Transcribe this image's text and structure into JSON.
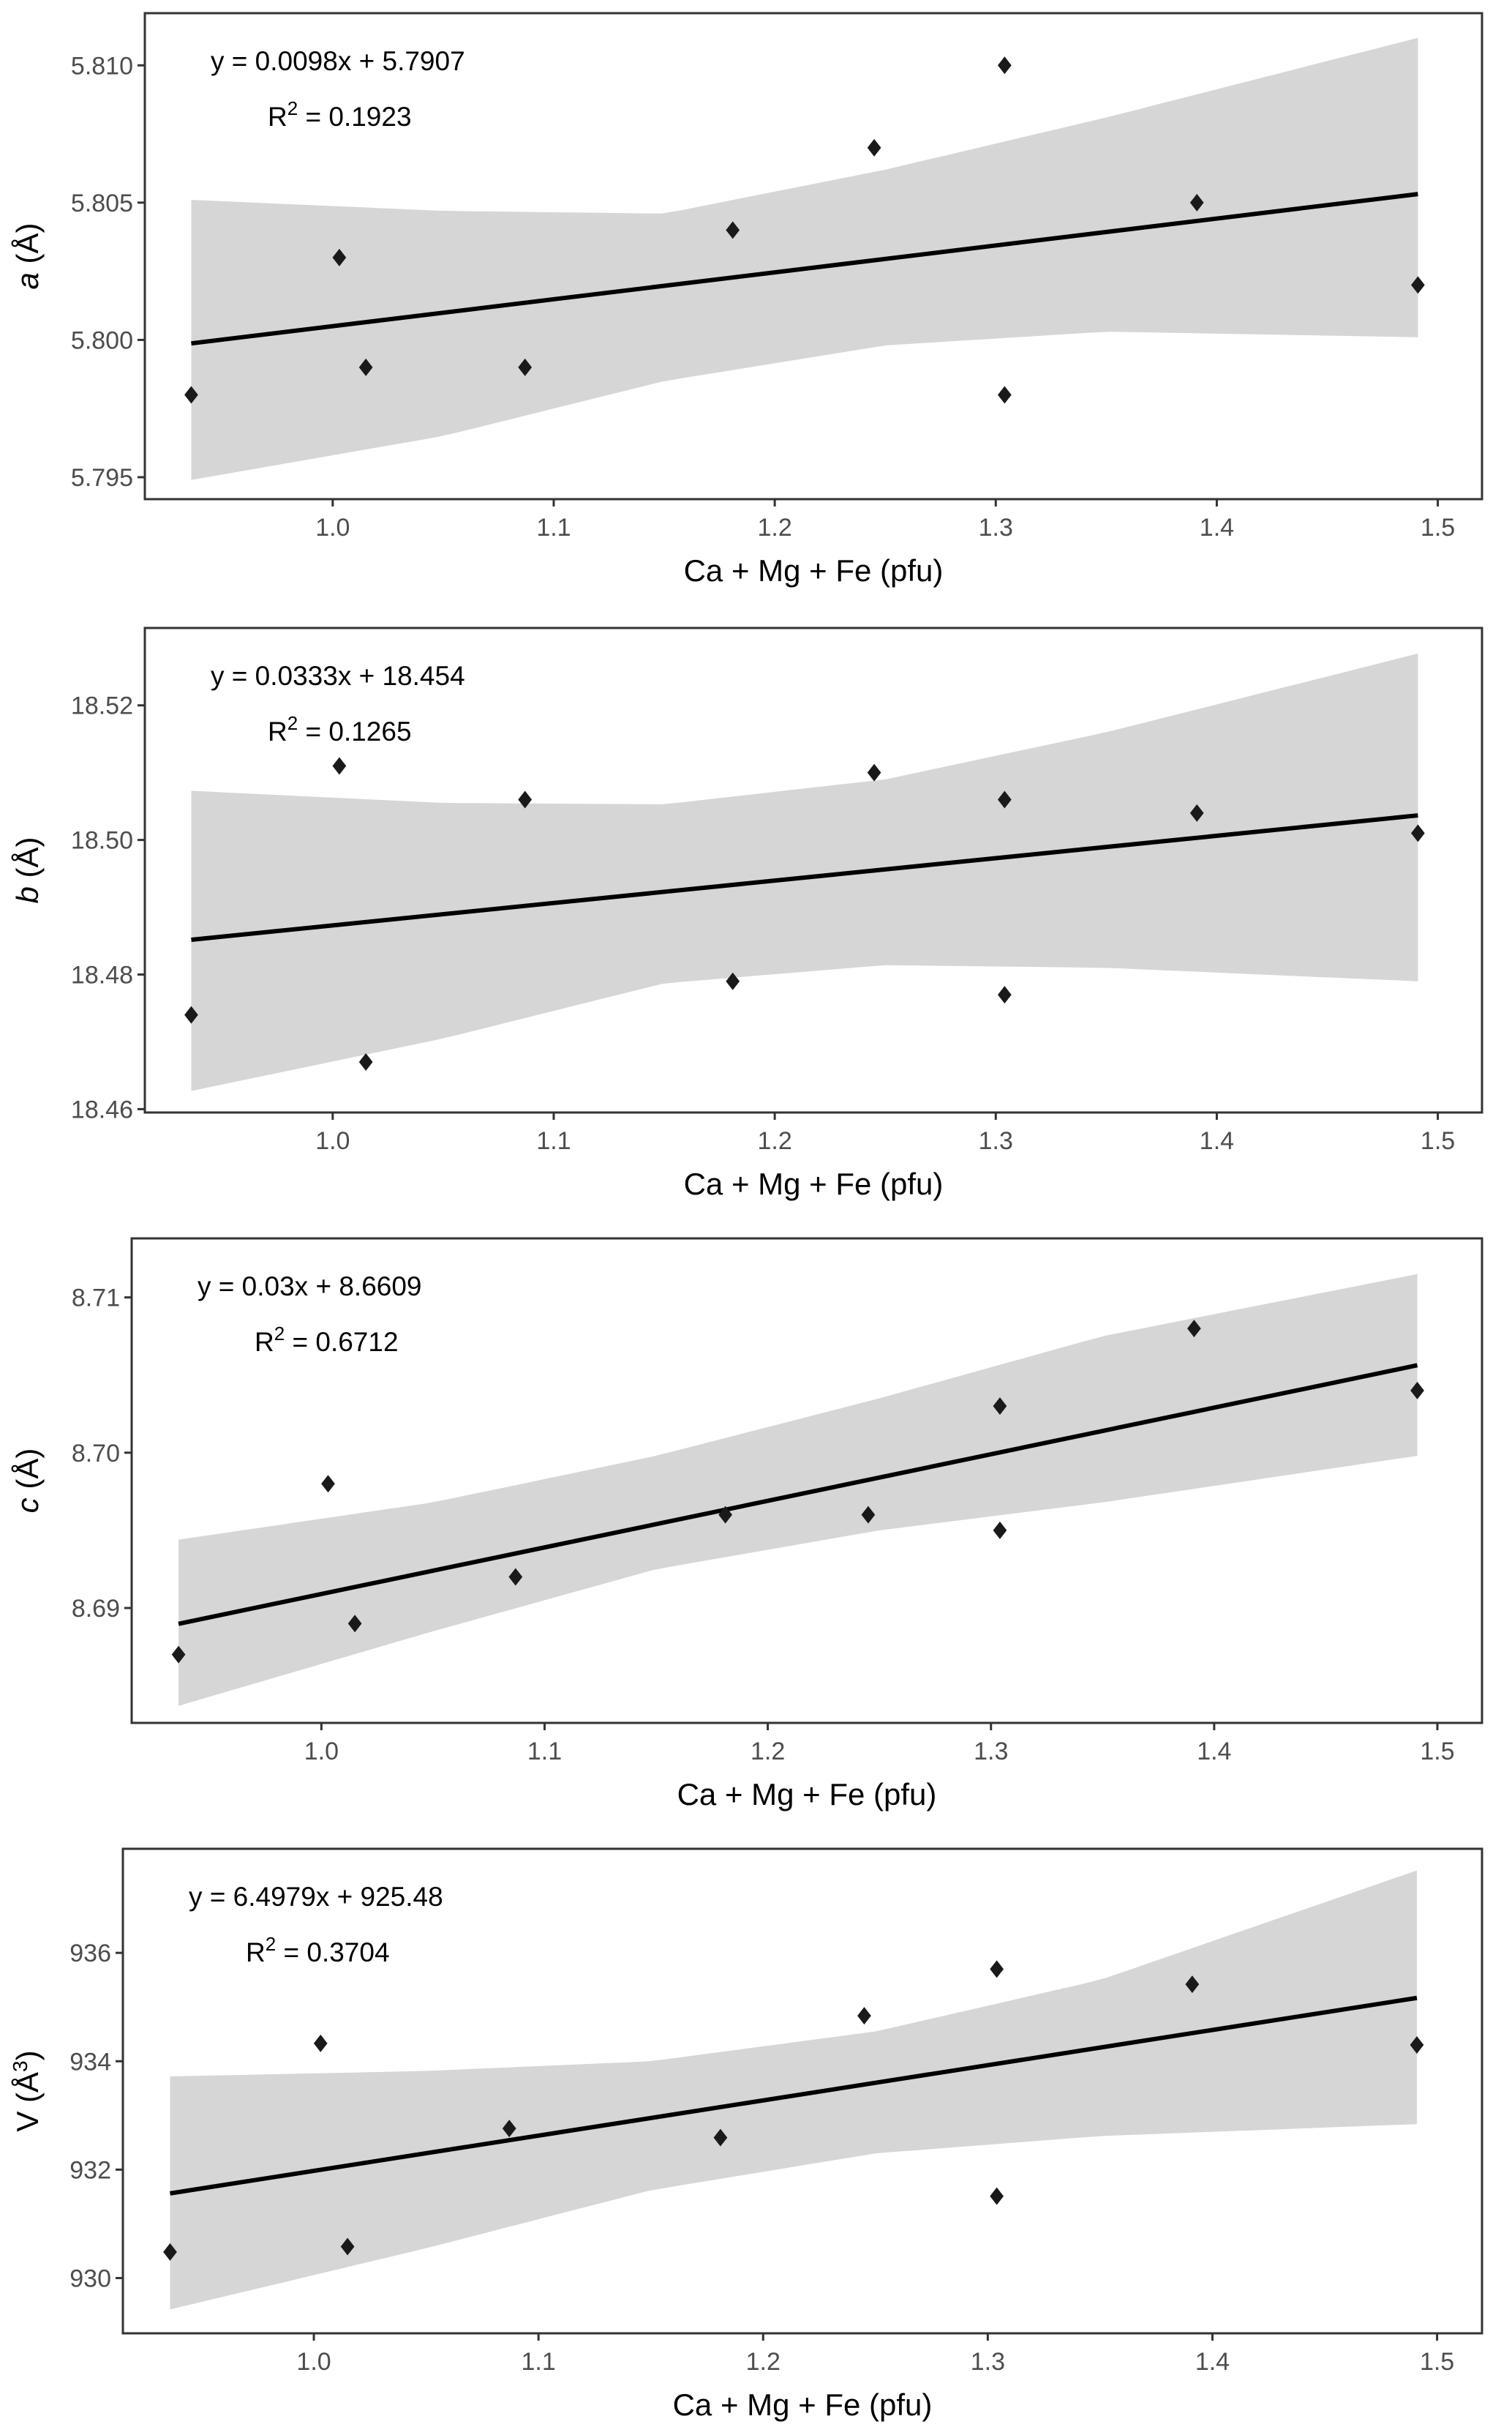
{
  "chart_data": [
    {
      "type": "scatter",
      "panel": "a",
      "xlabel": "Ca + Mg + Fe (pfu)",
      "ylabel": "a (Å)",
      "ylabel_var": "a",
      "ylabel_unit": "(Å)",
      "ylabel_sup": "",
      "xlim": [
        0.915,
        1.52
      ],
      "ylim": [
        5.7942,
        5.8119
      ],
      "xticks": [
        1.0,
        1.1,
        1.2,
        1.3,
        1.4,
        1.5
      ],
      "xtick_labels": [
        "1.0",
        "1.1",
        "1.2",
        "1.3",
        "1.4",
        "1.5"
      ],
      "yticks": [
        5.795,
        5.8,
        5.805,
        5.81
      ],
      "ytick_labels": [
        "5.795",
        "5.800",
        "5.805",
        "5.810"
      ],
      "grid": false,
      "points": [
        {
          "x": 0.936,
          "y": 5.798
        },
        {
          "x": 1.003,
          "y": 5.803
        },
        {
          "x": 1.015,
          "y": 5.799
        },
        {
          "x": 1.087,
          "y": 5.799
        },
        {
          "x": 1.181,
          "y": 5.804
        },
        {
          "x": 1.245,
          "y": 5.807
        },
        {
          "x": 1.304,
          "y": 5.81
        },
        {
          "x": 1.304,
          "y": 5.798
        },
        {
          "x": 1.391,
          "y": 5.805
        },
        {
          "x": 1.491,
          "y": 5.802
        }
      ],
      "fit": {
        "slope": 0.0098,
        "intercept": 5.7907,
        "x_range": [
          0.936,
          1.491
        ]
      },
      "confidence_band": {
        "x": [
          0.936,
          1.05,
          1.15,
          1.25,
          1.35,
          1.491
        ],
        "lower": [
          5.7949,
          5.7965,
          5.7985,
          5.7998,
          5.8003,
          5.8001
        ],
        "upper": [
          5.8051,
          5.8047,
          5.8046,
          5.8062,
          5.8081,
          5.811
        ]
      },
      "equation_label": "y = 0.0098x + 5.7907",
      "r2_label_prefix": "R",
      "r2_label_sup": "2",
      "r2_label_value": " = 0.1923"
    },
    {
      "type": "scatter",
      "panel": "b",
      "xlabel": "Ca + Mg + Fe (pfu)",
      "ylabel": "b (Å)",
      "ylabel_var": "b",
      "ylabel_unit": "(Å)",
      "ylabel_sup": "",
      "xlim": [
        0.915,
        1.52
      ],
      "ylim": [
        18.4595,
        18.5315
      ],
      "xticks": [
        1.0,
        1.1,
        1.2,
        1.3,
        1.4,
        1.5
      ],
      "xtick_labels": [
        "1.0",
        "1.1",
        "1.2",
        "1.3",
        "1.4",
        "1.5"
      ],
      "yticks": [
        18.46,
        18.48,
        18.5,
        18.52
      ],
      "ytick_labels": [
        "18.46",
        "18.48",
        "18.50",
        "18.52"
      ],
      "grid": false,
      "points": [
        {
          "x": 0.936,
          "y": 18.474
        },
        {
          "x": 1.003,
          "y": 18.511
        },
        {
          "x": 1.015,
          "y": 18.467
        },
        {
          "x": 1.087,
          "y": 18.506
        },
        {
          "x": 1.181,
          "y": 18.479
        },
        {
          "x": 1.245,
          "y": 18.51
        },
        {
          "x": 1.304,
          "y": 18.506
        },
        {
          "x": 1.304,
          "y": 18.477
        },
        {
          "x": 1.391,
          "y": 18.504
        },
        {
          "x": 1.491,
          "y": 18.501
        }
      ],
      "fit": {
        "slope": 0.0333,
        "intercept": 18.454,
        "x_range": [
          0.936,
          1.491
        ]
      },
      "confidence_band": {
        "x": [
          0.936,
          1.05,
          1.15,
          1.25,
          1.35,
          1.491
        ],
        "lower": [
          18.4627,
          18.4705,
          18.4787,
          18.4814,
          18.481,
          18.479
        ],
        "upper": [
          18.5073,
          18.5055,
          18.5053,
          18.509,
          18.516,
          18.5277
        ]
      },
      "equation_label": "y = 0.0333x + 18.454",
      "r2_label_prefix": "R",
      "r2_label_sup": "2",
      "r2_label_value": " = 0.1265"
    },
    {
      "type": "scatter",
      "panel": "c",
      "xlabel": "Ca + Mg + Fe (pfu)",
      "ylabel": "c (Å)",
      "ylabel_var": "c",
      "ylabel_unit": "(Å)",
      "ylabel_sup": "",
      "xlim": [
        0.915,
        1.52
      ],
      "ylim": [
        8.6826,
        8.7138
      ],
      "xticks": [
        1.0,
        1.1,
        1.2,
        1.3,
        1.4,
        1.5
      ],
      "xtick_labels": [
        "1.0",
        "1.1",
        "1.2",
        "1.3",
        "1.4",
        "1.5"
      ],
      "yticks": [
        8.69,
        8.7,
        8.71
      ],
      "ytick_labels": [
        "8.69",
        "8.70",
        "8.71"
      ],
      "grid": false,
      "points": [
        {
          "x": 0.936,
          "y": 8.687
        },
        {
          "x": 1.003,
          "y": 8.698
        },
        {
          "x": 1.015,
          "y": 8.689
        },
        {
          "x": 1.087,
          "y": 8.692
        },
        {
          "x": 1.181,
          "y": 8.696
        },
        {
          "x": 1.245,
          "y": 8.696
        },
        {
          "x": 1.304,
          "y": 8.703
        },
        {
          "x": 1.304,
          "y": 8.695
        },
        {
          "x": 1.391,
          "y": 8.708
        },
        {
          "x": 1.491,
          "y": 8.704
        }
      ],
      "fit": {
        "slope": 0.03,
        "intercept": 8.6609,
        "x_range": [
          0.936,
          1.491
        ]
      },
      "confidence_band": {
        "x": [
          0.936,
          1.05,
          1.15,
          1.25,
          1.35,
          1.491
        ],
        "lower": [
          8.6837,
          8.6885,
          8.6925,
          8.695,
          8.6968,
          8.6998
        ],
        "upper": [
          8.6944,
          8.6968,
          8.6998,
          8.7035,
          8.7075,
          8.7115
        ]
      },
      "equation_label": "y = 0.03x + 8.6609",
      "r2_label_prefix": "R",
      "r2_label_sup": "2",
      "r2_label_value": " = 0.6712"
    },
    {
      "type": "scatter",
      "panel": "V",
      "xlabel": "Ca + Mg + Fe (pfu)",
      "ylabel": "V (Å³)",
      "ylabel_var": "V",
      "ylabel_unit": "(Å",
      "ylabel_sup": "3",
      "xlim": [
        0.915,
        1.52
      ],
      "ylim": [
        928.98,
        937.92
      ],
      "xticks": [
        1.0,
        1.1,
        1.2,
        1.3,
        1.4,
        1.5
      ],
      "xtick_labels": [
        "1.0",
        "1.1",
        "1.2",
        "1.3",
        "1.4",
        "1.5"
      ],
      "yticks": [
        930,
        932,
        934,
        936
      ],
      "ytick_labels": [
        "930",
        "932",
        "934",
        "936"
      ],
      "grid": false,
      "points": [
        {
          "x": 0.936,
          "y": 930.48
        },
        {
          "x": 1.003,
          "y": 934.33
        },
        {
          "x": 1.015,
          "y": 930.58
        },
        {
          "x": 1.087,
          "y": 932.76
        },
        {
          "x": 1.181,
          "y": 932.59
        },
        {
          "x": 1.245,
          "y": 934.84
        },
        {
          "x": 1.304,
          "y": 935.7
        },
        {
          "x": 1.304,
          "y": 931.51
        },
        {
          "x": 1.391,
          "y": 935.42
        },
        {
          "x": 1.491,
          "y": 934.3
        }
      ],
      "fit": {
        "slope": 6.4979,
        "intercept": 925.48,
        "x_range": [
          0.936,
          1.491
        ]
      },
      "confidence_band": {
        "x": [
          0.936,
          1.05,
          1.15,
          1.25,
          1.35,
          1.491
        ],
        "lower": [
          929.42,
          930.55,
          931.62,
          932.3,
          932.62,
          932.84
        ],
        "upper": [
          933.72,
          933.82,
          934.0,
          934.55,
          935.5,
          937.52
        ]
      },
      "equation_label": "y = 6.4979x + 925.48",
      "r2_label_prefix": "R",
      "r2_label_sup": "2",
      "r2_label_value": " = 0.3704"
    }
  ],
  "colors": {
    "point_fill": "#1a1a1a",
    "fit_line": "#000000",
    "band_fill": "#d6d6d6",
    "panel_border": "#333333",
    "tick_label": "#4d4d4d"
  }
}
